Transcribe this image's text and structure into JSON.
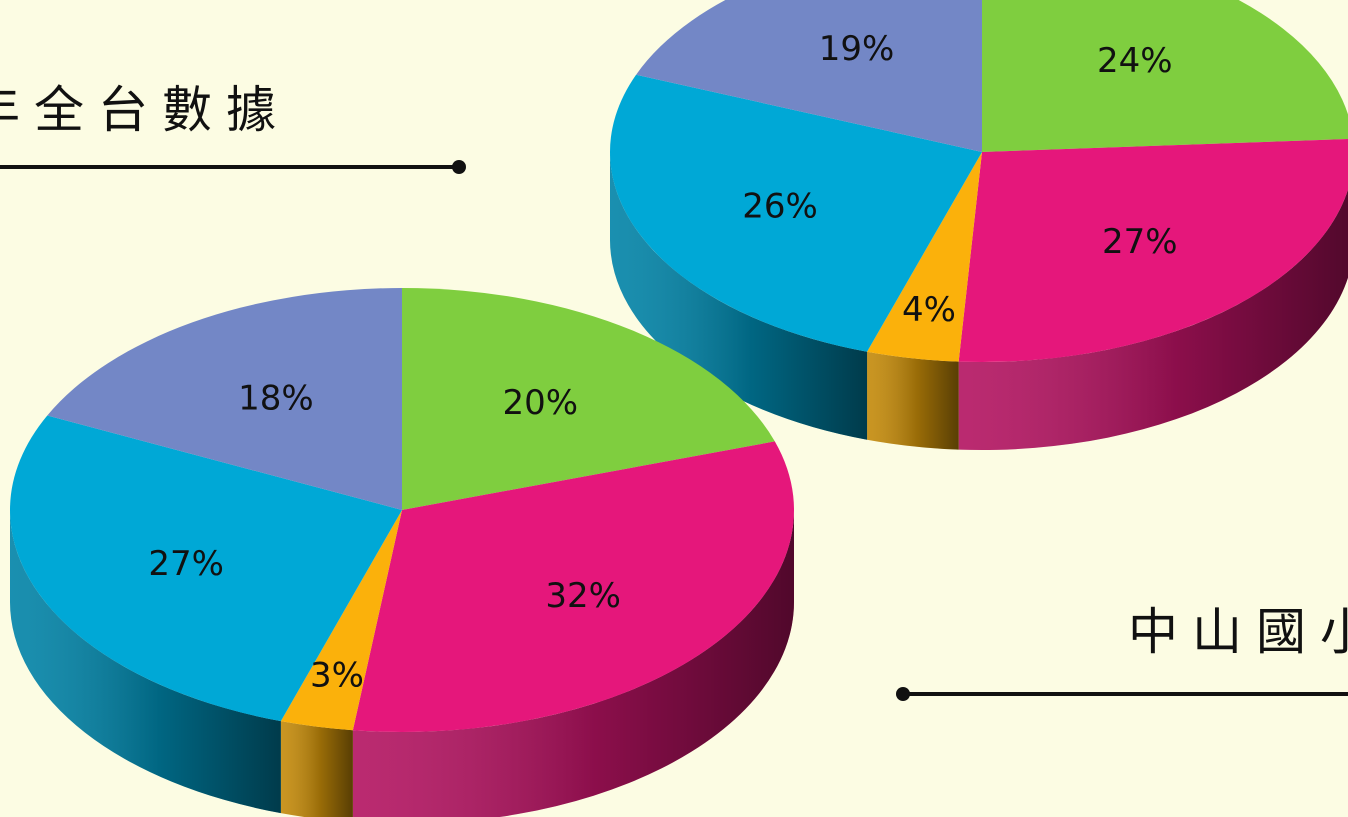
{
  "captions": {
    "top_left": "年全台數據",
    "bottom_right": "中山國小"
  },
  "colors": {
    "green": "#7fce3f",
    "magenta": "#e5177b",
    "yellow": "#fbb10b",
    "cyan": "#00a8d6",
    "lavender": "#7387c6"
  },
  "chart_data": [
    {
      "type": "pie",
      "values": [
        24,
        27,
        4,
        26,
        19
      ],
      "labels": [
        "24%",
        "27%",
        "4%",
        "26%",
        "19%"
      ],
      "colors": [
        "#7fce3f",
        "#e5177b",
        "#fbb10b",
        "#00a8d6",
        "#7387c6"
      ],
      "style": "3d"
    },
    {
      "type": "pie",
      "values": [
        20,
        32,
        3,
        27,
        18
      ],
      "labels": [
        "20%",
        "32%",
        "3%",
        "27%",
        "18%"
      ],
      "colors": [
        "#7fce3f",
        "#e5177b",
        "#fbb10b",
        "#00a8d6",
        "#7387c6"
      ],
      "style": "3d"
    }
  ]
}
